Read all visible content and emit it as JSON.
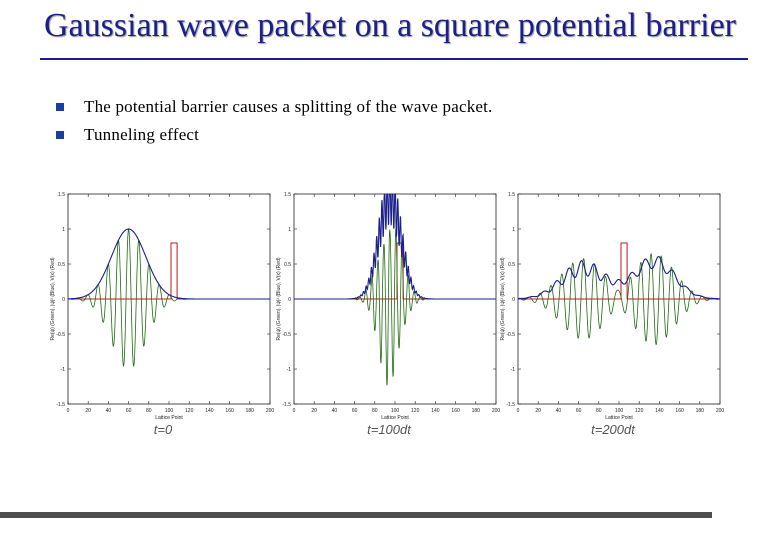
{
  "slide": {
    "title": "Gaussian wave packet on a square potential barrier",
    "bullets": [
      "The potential barrier causes a splitting of the wave packet.",
      "Tunneling effect"
    ]
  },
  "colors": {
    "title": "#1a1f8c",
    "bullet": "#1a3fa0",
    "re_psi": "#1f6b10",
    "abs_psi": "#1a1f8c",
    "potential": "#c0191b",
    "footer": "#4d4d4d"
  },
  "chart_data": [
    {
      "type": "line",
      "caption": "t=0",
      "xlabel": "Lattice Point",
      "ylabel": "Re(ψ) (Green), |ψ|² (Blue), V(x) (Red)",
      "xlim": [
        0,
        200
      ],
      "ylim": [
        -1.5,
        1.5
      ],
      "x_ticks": [
        0,
        20,
        40,
        60,
        80,
        100,
        120,
        140,
        160,
        180,
        200
      ],
      "y_ticks": [
        1.5,
        1,
        0.5,
        0,
        -0.5,
        -1,
        -1.5
      ],
      "packet": {
        "center": 60,
        "width": 17,
        "k": 0.62
      },
      "barrier": {
        "x_start": 102,
        "x_end": 108,
        "height": 0.8
      },
      "series": [
        {
          "role": "re_psi",
          "values": "Re(psi): oscillating Gaussian, peak ~0.98"
        },
        {
          "role": "abs_psi",
          "values": "|psi|^2: Gaussian envelope centered at 60"
        },
        {
          "role": "potential",
          "values": "V(x): square barrier of height 0.8"
        }
      ]
    },
    {
      "type": "line",
      "caption": "t=100dt",
      "xlabel": "Lattice Point",
      "ylabel": "Re(ψ) (Green), |ψ|² (Blue), V(x) (Red)",
      "xlim": [
        0,
        200
      ],
      "ylim": [
        -1.5,
        1.5
      ],
      "x_ticks": [
        0,
        20,
        40,
        60,
        80,
        100,
        120,
        140,
        160,
        180,
        200
      ],
      "y_ticks": [
        1.5,
        1,
        0.5,
        0,
        -0.5,
        -1,
        -1.5
      ],
      "packet": {
        "center": 95,
        "width": 11,
        "k": 1.05
      },
      "barrier": {
        "x_start": 102,
        "x_end": 108,
        "height": 0.8
      }
    },
    {
      "type": "line",
      "caption": "t=200dt",
      "xlabel": "Lattice Point",
      "ylabel": "Re(ψ) (Green), |ψ|² (Blue), V(x) (Red)",
      "xlim": [
        0,
        200
      ],
      "ylim": [
        -1.5,
        1.5
      ],
      "x_ticks": [
        0,
        20,
        40,
        60,
        80,
        100,
        120,
        140,
        160,
        180,
        200
      ],
      "y_ticks": [
        1.5,
        1,
        0.5,
        0,
        -0.5,
        -1,
        -1.5
      ],
      "reflected": {
        "center": 65,
        "width": 22,
        "k": 0.58,
        "amp": 0.55
      },
      "transmitted": {
        "center": 135,
        "width": 20,
        "k": 0.62,
        "amp": 0.62
      },
      "barrier": {
        "x_start": 102,
        "x_end": 108,
        "height": 0.8
      }
    }
  ]
}
